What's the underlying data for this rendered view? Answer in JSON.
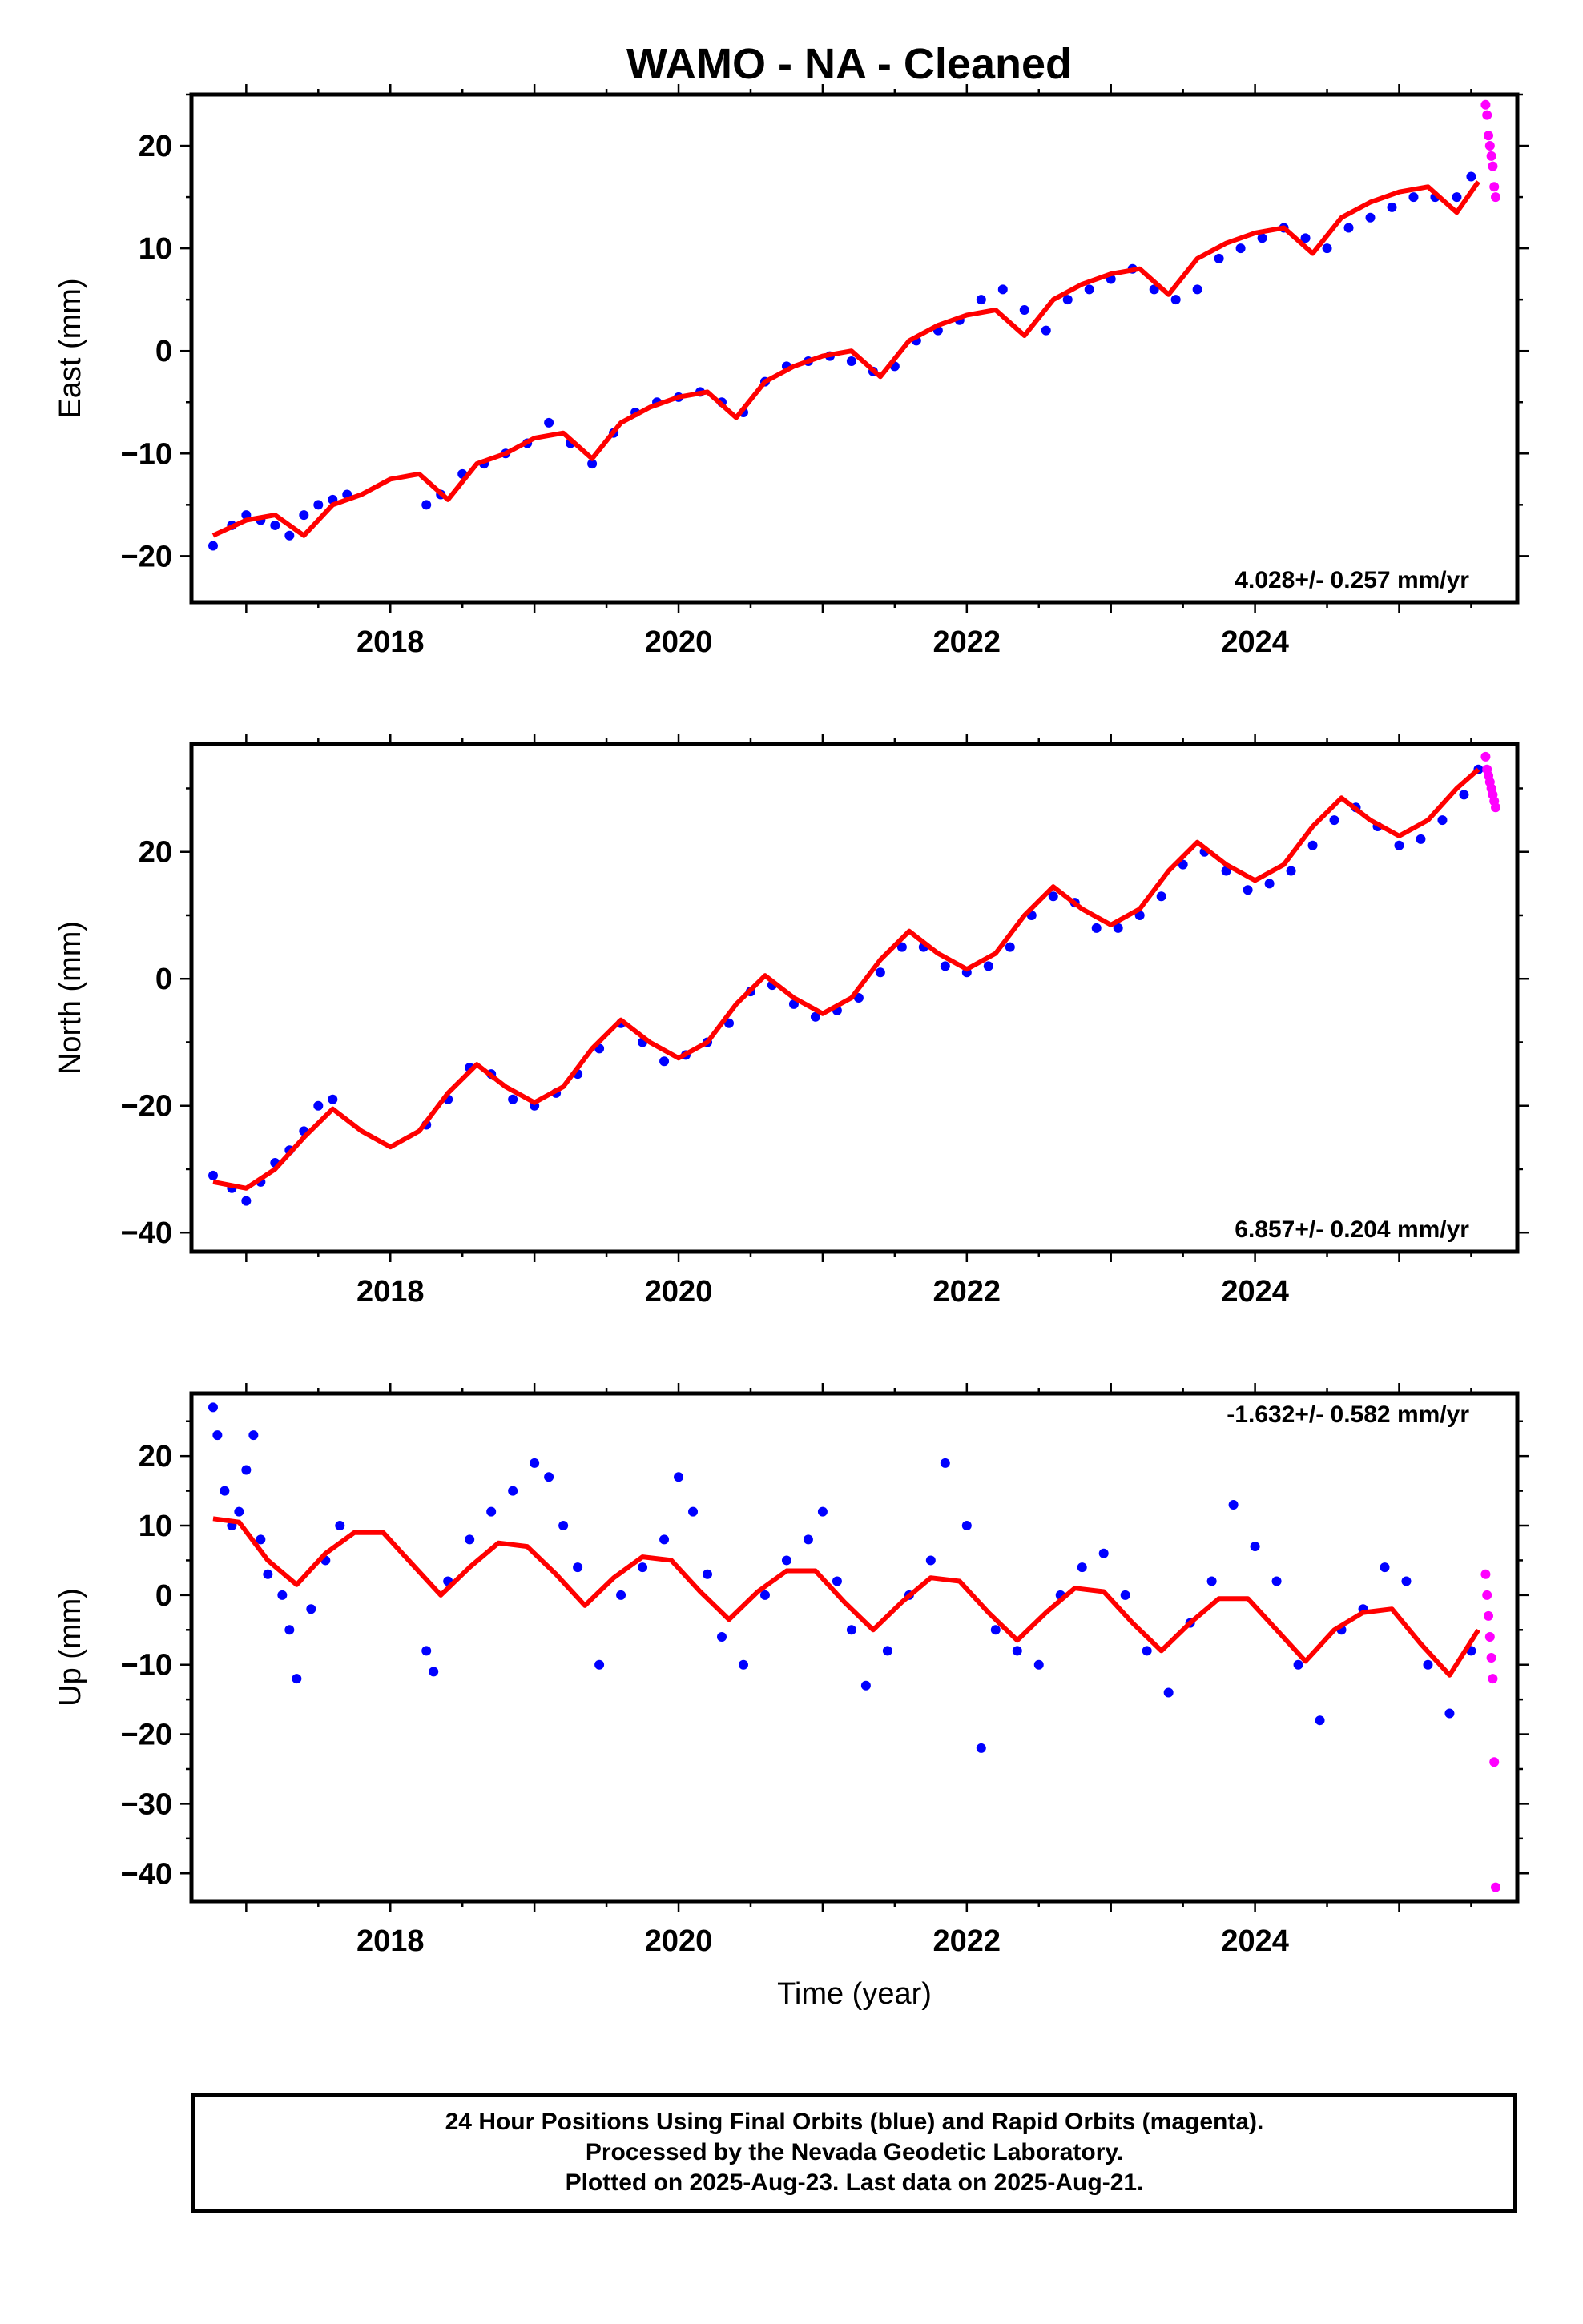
{
  "title": "WAMO  - NA - Cleaned",
  "colors": {
    "final": "#0000ff",
    "rapid": "#ff00ff",
    "fit": "#ff0000"
  },
  "chart_data": [
    {
      "type": "scatter",
      "ylabel": "East (mm)",
      "xlabel": "",
      "xlim": [
        2016.62,
        2025.82
      ],
      "ylim": [
        -24.5,
        25
      ],
      "xticks": [
        2018,
        2020,
        2022,
        2024
      ],
      "yticks": [
        -20,
        -10,
        0,
        10,
        20
      ],
      "rate_label": "4.028+/- 0.257 mm/yr",
      "rate_position": "bottom-right",
      "series": [
        {
          "color": "#0000ff",
          "role": "final",
          "x": [
            2016.77,
            2016.9,
            2017.0,
            2017.1,
            2017.2,
            2017.3,
            2017.4,
            2017.5,
            2017.6,
            2017.7,
            2018.25,
            2018.35,
            2018.5,
            2018.65,
            2018.8,
            2018.95,
            2019.1,
            2019.25,
            2019.4,
            2019.55,
            2019.7,
            2019.85,
            2020.0,
            2020.15,
            2020.3,
            2020.45,
            2020.6,
            2020.75,
            2020.9,
            2021.05,
            2021.2,
            2021.35,
            2021.5,
            2021.65,
            2021.8,
            2021.95,
            2022.1,
            2022.25,
            2022.4,
            2022.55,
            2022.7,
            2022.85,
            2023.0,
            2023.15,
            2023.3,
            2023.45,
            2023.6,
            2023.75,
            2023.9,
            2024.05,
            2024.2,
            2024.35,
            2024.5,
            2024.65,
            2024.8,
            2024.95,
            2025.1,
            2025.25,
            2025.4,
            2025.5
          ],
          "y": [
            -19,
            -17,
            -16,
            -16.5,
            -17,
            -18,
            -16,
            -15,
            -14.5,
            -14,
            -15,
            -14,
            -12,
            -11,
            -10,
            -9,
            -7,
            -9,
            -11,
            -8,
            -6,
            -5,
            -4.5,
            -4,
            -5,
            -6,
            -3,
            -1.5,
            -1,
            -0.5,
            -1,
            -2,
            -1.5,
            1,
            2,
            3,
            5,
            6,
            4,
            2,
            5,
            6,
            7,
            8,
            6,
            5,
            6,
            9,
            10,
            11,
            12,
            11,
            10,
            12,
            13,
            14,
            15,
            15,
            15,
            17
          ]
        },
        {
          "color": "#ff00ff",
          "role": "rapid",
          "x": [
            2025.6,
            2025.61,
            2025.62,
            2025.63,
            2025.64,
            2025.65,
            2025.66,
            2025.67
          ],
          "y": [
            24,
            23,
            21,
            20,
            19,
            18,
            16,
            15
          ]
        },
        {
          "color": "#ff0000",
          "role": "fit",
          "x": [
            2016.77,
            2017.0,
            2017.2,
            2017.4,
            2017.6,
            2017.8,
            2018.0,
            2018.2,
            2018.4,
            2018.6,
            2018.8,
            2019.0,
            2019.2,
            2019.4,
            2019.6,
            2019.8,
            2020.0,
            2020.2,
            2020.4,
            2020.6,
            2020.8,
            2021.0,
            2021.2,
            2021.4,
            2021.6,
            2021.8,
            2022.0,
            2022.2,
            2022.4,
            2022.6,
            2022.8,
            2023.0,
            2023.2,
            2023.4,
            2023.6,
            2023.8,
            2024.0,
            2024.2,
            2024.4,
            2024.6,
            2024.8,
            2025.0,
            2025.2,
            2025.4,
            2025.55
          ],
          "y": [
            -18,
            -16.5,
            -16,
            -18,
            -15,
            -14,
            -12.5,
            -12,
            -14.5,
            -11,
            -10,
            -8.5,
            -8,
            -10.5,
            -7,
            -5.5,
            -4.5,
            -4,
            -6.5,
            -3,
            -1.5,
            -0.5,
            0,
            -2.5,
            1,
            2.5,
            3.5,
            4,
            1.5,
            5,
            6.5,
            7.5,
            8,
            5.5,
            9,
            10.5,
            11.5,
            12,
            9.5,
            13,
            14.5,
            15.5,
            16,
            13.5,
            16.5
          ]
        }
      ]
    },
    {
      "type": "scatter",
      "ylabel": "North (mm)",
      "xlabel": "",
      "xlim": [
        2016.62,
        2025.82
      ],
      "ylim": [
        -43,
        37
      ],
      "xticks": [
        2018,
        2020,
        2022,
        2024
      ],
      "yticks": [
        -40,
        -20,
        0,
        20
      ],
      "rate_label": "6.857+/- 0.204 mm/yr",
      "rate_position": "bottom-right",
      "series": [
        {
          "color": "#0000ff",
          "role": "final",
          "x": [
            2016.77,
            2016.9,
            2017.0,
            2017.1,
            2017.2,
            2017.3,
            2017.4,
            2017.5,
            2017.6,
            2018.25,
            2018.4,
            2018.55,
            2018.7,
            2018.85,
            2019.0,
            2019.15,
            2019.3,
            2019.45,
            2019.6,
            2019.75,
            2019.9,
            2020.05,
            2020.2,
            2020.35,
            2020.5,
            2020.65,
            2020.8,
            2020.95,
            2021.1,
            2021.25,
            2021.4,
            2021.55,
            2021.7,
            2021.85,
            2022.0,
            2022.15,
            2022.3,
            2022.45,
            2022.6,
            2022.75,
            2022.9,
            2023.05,
            2023.2,
            2023.35,
            2023.5,
            2023.65,
            2023.8,
            2023.95,
            2024.1,
            2024.25,
            2024.4,
            2024.55,
            2024.7,
            2024.85,
            2025.0,
            2025.15,
            2025.3,
            2025.45,
            2025.55
          ],
          "y": [
            -31,
            -33,
            -35,
            -32,
            -29,
            -27,
            -24,
            -20,
            -19,
            -23,
            -19,
            -14,
            -15,
            -19,
            -20,
            -18,
            -15,
            -11,
            -7,
            -10,
            -13,
            -12,
            -10,
            -7,
            -2,
            -1,
            -4,
            -6,
            -5,
            -3,
            1,
            5,
            5,
            2,
            1,
            2,
            5,
            10,
            13,
            12,
            8,
            8,
            10,
            13,
            18,
            20,
            17,
            14,
            15,
            17,
            21,
            25,
            27,
            24,
            21,
            22,
            25,
            29,
            33
          ]
        },
        {
          "color": "#ff00ff",
          "role": "rapid",
          "x": [
            2025.6,
            2025.61,
            2025.62,
            2025.63,
            2025.64,
            2025.65,
            2025.66,
            2025.67
          ],
          "y": [
            35,
            33,
            32,
            31,
            30,
            29,
            28,
            27
          ]
        },
        {
          "color": "#ff0000",
          "role": "fit",
          "x": [
            2016.77,
            2017.0,
            2017.2,
            2017.4,
            2017.6,
            2017.8,
            2018.0,
            2018.2,
            2018.4,
            2018.6,
            2018.8,
            2019.0,
            2019.2,
            2019.4,
            2019.6,
            2019.8,
            2020.0,
            2020.2,
            2020.4,
            2020.6,
            2020.8,
            2021.0,
            2021.2,
            2021.4,
            2021.6,
            2021.8,
            2022.0,
            2022.2,
            2022.4,
            2022.6,
            2022.8,
            2023.0,
            2023.2,
            2023.4,
            2023.6,
            2023.8,
            2024.0,
            2024.2,
            2024.4,
            2024.6,
            2024.8,
            2025.0,
            2025.2,
            2025.4,
            2025.55
          ],
          "y": [
            -32,
            -33,
            -30,
            -25,
            -20.5,
            -24,
            -26.5,
            -24,
            -18,
            -13.5,
            -17,
            -19.5,
            -17,
            -11,
            -6.5,
            -10,
            -12.5,
            -10,
            -4,
            0.5,
            -3,
            -5.5,
            -3,
            3,
            7.5,
            4,
            1.5,
            4,
            10,
            14.5,
            11,
            8.5,
            11,
            17,
            21.5,
            18,
            15.5,
            18,
            24,
            28.5,
            25,
            22.5,
            25,
            30,
            33
          ]
        }
      ]
    },
    {
      "type": "scatter",
      "ylabel": "Up (mm)",
      "xlabel": "Time (year)",
      "xlim": [
        2016.62,
        2025.82
      ],
      "ylim": [
        -44,
        29
      ],
      "xticks": [
        2018,
        2020,
        2022,
        2024
      ],
      "yticks": [
        -40,
        -30,
        -20,
        -10,
        0,
        10,
        20
      ],
      "rate_label": "-1.632+/- 0.582 mm/yr",
      "rate_position": "top-right",
      "series": [
        {
          "color": "#0000ff",
          "role": "final",
          "x": [
            2016.77,
            2016.8,
            2016.85,
            2016.9,
            2016.95,
            2017.0,
            2017.05,
            2017.1,
            2017.15,
            2017.25,
            2017.3,
            2017.35,
            2017.45,
            2017.55,
            2017.65,
            2018.25,
            2018.3,
            2018.4,
            2018.55,
            2018.7,
            2018.85,
            2019.0,
            2019.1,
            2019.2,
            2019.3,
            2019.45,
            2019.6,
            2019.75,
            2019.9,
            2020.0,
            2020.1,
            2020.2,
            2020.3,
            2020.45,
            2020.6,
            2020.75,
            2020.9,
            2021.0,
            2021.1,
            2021.2,
            2021.3,
            2021.45,
            2021.6,
            2021.75,
            2021.85,
            2022.0,
            2022.1,
            2022.2,
            2022.35,
            2022.5,
            2022.65,
            2022.8,
            2022.95,
            2023.1,
            2023.25,
            2023.4,
            2023.55,
            2023.7,
            2023.85,
            2024.0,
            2024.15,
            2024.3,
            2024.45,
            2024.6,
            2024.75,
            2024.9,
            2025.05,
            2025.2,
            2025.35,
            2025.5
          ],
          "y": [
            27,
            23,
            15,
            10,
            12,
            18,
            23,
            8,
            3,
            0,
            -5,
            -12,
            -2,
            5,
            10,
            -8,
            -11,
            2,
            8,
            12,
            15,
            19,
            17,
            10,
            4,
            -10,
            0,
            4,
            8,
            17,
            12,
            3,
            -6,
            -10,
            0,
            5,
            8,
            12,
            2,
            -5,
            -13,
            -8,
            0,
            5,
            19,
            10,
            -22,
            -5,
            -8,
            -10,
            0,
            4,
            6,
            0,
            -8,
            -14,
            -4,
            2,
            13,
            7,
            2,
            -10,
            -18,
            -5,
            -2,
            4,
            2,
            -10,
            -17,
            -8
          ]
        },
        {
          "color": "#ff00ff",
          "role": "rapid",
          "x": [
            2025.6,
            2025.61,
            2025.62,
            2025.63,
            2025.64,
            2025.65,
            2025.66,
            2025.67
          ],
          "y": [
            3,
            0,
            -3,
            -6,
            -9,
            -12,
            -24,
            -42
          ]
        },
        {
          "color": "#ff0000",
          "role": "fit",
          "x": [
            2016.77,
            2016.95,
            2017.15,
            2017.35,
            2017.55,
            2017.75,
            2017.95,
            2018.15,
            2018.35,
            2018.55,
            2018.75,
            2018.95,
            2019.15,
            2019.35,
            2019.55,
            2019.75,
            2019.95,
            2020.15,
            2020.35,
            2020.55,
            2020.75,
            2020.95,
            2021.15,
            2021.35,
            2021.55,
            2021.75,
            2021.95,
            2022.15,
            2022.35,
            2022.55,
            2022.75,
            2022.95,
            2023.15,
            2023.35,
            2023.55,
            2023.75,
            2023.95,
            2024.15,
            2024.35,
            2024.55,
            2024.75,
            2024.95,
            2025.15,
            2025.35,
            2025.55
          ],
          "y": [
            11,
            10.5,
            5,
            1.5,
            6,
            9,
            9,
            4.5,
            0,
            4,
            7.5,
            7,
            3,
            -1.5,
            2.5,
            5.5,
            5,
            0.5,
            -3.5,
            0.5,
            3.5,
            3.5,
            -1,
            -5,
            -1,
            2.5,
            2,
            -2.5,
            -6.5,
            -2.5,
            1,
            0.5,
            -4,
            -8,
            -4,
            -0.5,
            -0.5,
            -5,
            -9.5,
            -5,
            -2.5,
            -2,
            -7,
            -11.5,
            -5
          ]
        }
      ]
    }
  ],
  "footer": {
    "line1": "24 Hour Positions Using Final Orbits (blue) and Rapid Orbits (magenta).",
    "line2": "Processed by the Nevada Geodetic Laboratory.",
    "line3": "Plotted on 2025-Aug-23. Last data on 2025-Aug-21."
  }
}
